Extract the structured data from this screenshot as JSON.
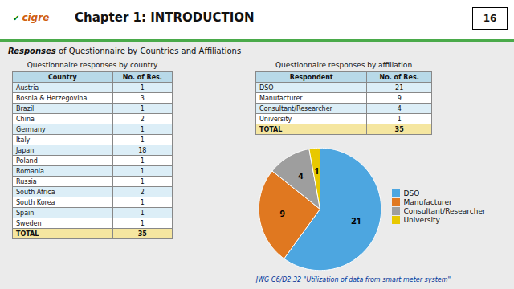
{
  "title": "Chapter 1: INTRODUCTION",
  "page_num": "16",
  "logo_mark": "✔",
  "logo": "cigre",
  "heading": [
    "Responses",
    "of Questionnaire by Countries and Affiliations"
  ],
  "footer": "JWG C6/D2.32 \"Utilization of data from smart meter system\"",
  "chart_data": [
    {
      "type": "table",
      "title": "Questionnaire responses by country",
      "columns": [
        "Country",
        "No. of Res."
      ],
      "categories": [
        "Austria",
        "Bosnia & Herzegovina",
        "Brazil",
        "China",
        "Germany",
        "Italy",
        "Japan",
        "Poland",
        "Romania",
        "Russia",
        "South Africa",
        "South Korea",
        "Spain",
        "Sweden",
        "TOTAL"
      ],
      "values": [
        1,
        3,
        1,
        2,
        1,
        1,
        18,
        1,
        1,
        1,
        2,
        1,
        1,
        1,
        35
      ]
    },
    {
      "type": "table",
      "title": "Questionnaire responses by affiliation",
      "columns": [
        "Respondent",
        "No. of Res."
      ],
      "categories": [
        "DSO",
        "Manufacturer",
        "Consultant/Researcher",
        "University",
        "TOTAL"
      ],
      "values": [
        21,
        9,
        4,
        1,
        35
      ]
    },
    {
      "type": "pie",
      "categories": [
        "DSO",
        "Manufacturer",
        "Consultant/Researcher",
        "University"
      ],
      "values": [
        21,
        9,
        4,
        1
      ],
      "colors": [
        "#4da6e0",
        "#e07820",
        "#9e9e9e",
        "#e8c800"
      ],
      "data_labels": true,
      "legend": "right"
    }
  ]
}
